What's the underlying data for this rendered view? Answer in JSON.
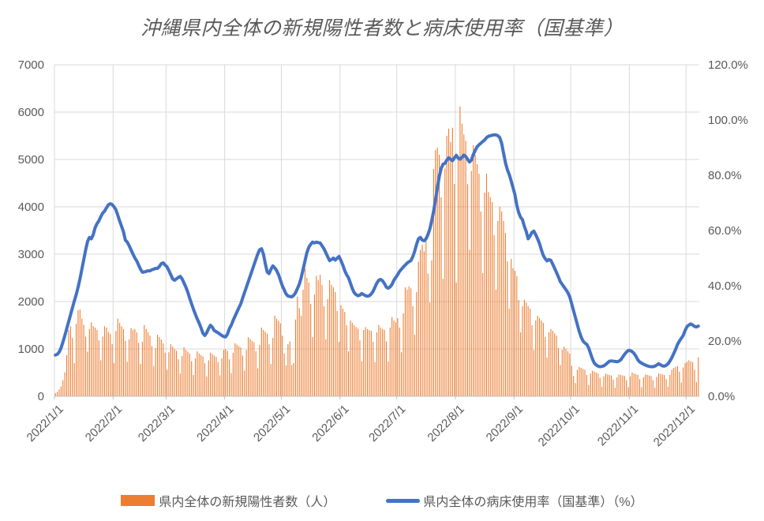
{
  "title": "沖縄県内全体の新規陽性者数と病床使用率（国基準）",
  "colors": {
    "bar": "#ED7D31",
    "line": "#4472C4",
    "text": "#595959",
    "grid": "#D9D9D9",
    "axis": "#BFBFBF"
  },
  "legend": {
    "cases": "県内全体の新規陽性者数（人）",
    "usage": "県内全体の病床使用率（国基準）（%）"
  },
  "chart_data": {
    "type": "combo-bar-line",
    "x_start": "2022/1/1",
    "x_end": "2022/12/7",
    "x_tick_labels": [
      "2022/1/1",
      "2022/2/1",
      "2022/3/1",
      "2022/4/1",
      "2022/5/1",
      "2022/6/1",
      "2022/7/1",
      "2022/8/1",
      "2022/9/1",
      "2022/10/1",
      "2022/11/1",
      "2022/12/1"
    ],
    "y_left": {
      "min": 0,
      "max": 7000,
      "step": 1000,
      "ticks": [
        "0",
        "1000",
        "2000",
        "3000",
        "4000",
        "5000",
        "6000",
        "7000"
      ]
    },
    "y_right": {
      "min": 0,
      "max": 120,
      "step": 20,
      "ticks": [
        "0.0%",
        "20.0%",
        "40.0%",
        "60.0%",
        "80.0%",
        "100.0%",
        "120.0%"
      ]
    },
    "grid": "both",
    "legend_position": "bottom",
    "series": [
      {
        "name": "県内全体の新規陽性者数（人）",
        "type": "bar",
        "axis": "left",
        "color": "#ED7D31",
        "daily_values": [
          65,
          90,
          145,
          210,
          340,
          505,
          870,
          1400,
          1480,
          1230,
          700,
          1530,
          1820,
          1830,
          1640,
          1510,
          1260,
          945,
          1420,
          1560,
          1480,
          1450,
          1400,
          1180,
          760,
          1260,
          1480,
          1450,
          1360,
          1320,
          1100,
          700,
          1380,
          1640,
          1550,
          1480,
          1420,
          1170,
          730,
          1200,
          1440,
          1400,
          1420,
          1350,
          1130,
          680,
          1150,
          1505,
          1422,
          1350,
          1280,
          1060,
          640,
          1020,
          1300,
          1250,
          1200,
          1120,
          920,
          560,
          930,
          1100,
          1050,
          1000,
          960,
          780,
          480,
          850,
          1035,
          980,
          940,
          900,
          740,
          450,
          800,
          950,
          900,
          870,
          840,
          700,
          420,
          760,
          920,
          890,
          860,
          830,
          720,
          440,
          800,
          980,
          1000,
          960,
          780,
          490,
          920,
          1120,
          1090,
          1060,
          1030,
          860,
          540,
          980,
          1250,
          1210,
          1170,
          1140,
          950,
          590,
          1080,
          1450,
          1400,
          1360,
          1320,
          1100,
          680,
          1230,
          1700,
          1640,
          1590,
          1540,
          1280,
          900,
          650,
          1100,
          1160,
          660,
          700,
          1620,
          2100,
          1860,
          1700,
          2250,
          2700,
          2500,
          2400,
          1950,
          1250,
          2150,
          2540,
          2450,
          2565,
          2350,
          1900,
          1200,
          2050,
          2450,
          2350,
          2300,
          2200,
          1800,
          1150,
          1920,
          1850,
          1780,
          1500,
          950,
          1600,
          1550,
          1500,
          1460,
          1430,
          1180,
          740,
          1400,
          1460,
          1420,
          1400,
          1380,
          1150,
          720,
          1350,
          1505,
          1450,
          1420,
          1400,
          1160,
          730,
          1450,
          1672,
          1600,
          1560,
          1650,
          1450,
          930,
          1750,
          2300,
          2250,
          2320,
          2280,
          1900,
          1300,
          2200,
          2840,
          3090,
          3200,
          3060,
          3340,
          2590,
          1980,
          2870,
          4800,
          5200,
          5250,
          5100,
          4200,
          2480,
          4810,
          5500,
          5650,
          5370,
          5670,
          4480,
          2400,
          5005,
          6117,
          5755,
          5530,
          5395,
          4478,
          3090,
          4756,
          5300,
          5100,
          4900,
          4700,
          3900,
          2600,
          4300,
          4700,
          4311,
          4200,
          4100,
          3400,
          2250,
          3700,
          4000,
          3900,
          3700,
          3450,
          2850,
          1850,
          2898,
          2704,
          2650,
          2538,
          2030,
          1350,
          1900,
          2040,
          1980,
          1900,
          1850,
          1500,
          980,
          1600,
          1700,
          1650,
          1600,
          1550,
          1250,
          820,
          1350,
          1420,
          1380,
          1330,
          1280,
          1020,
          660,
          980,
          1050,
          1000,
          950,
          900,
          645,
          430,
          280,
          560,
          620,
          600,
          580,
          560,
          450,
          240,
          480,
          540,
          520,
          500,
          480,
          390,
          200,
          420,
          480,
          460,
          450,
          440,
          350,
          180,
          400,
          460,
          450,
          440,
          430,
          340,
          190,
          420,
          500,
          480,
          470,
          450,
          360,
          190,
          400,
          460,
          450,
          440,
          430,
          340,
          180,
          410,
          480,
          470,
          460,
          450,
          360,
          200,
          450,
          560,
          600,
          620,
          640,
          520,
          290,
          610,
          700,
          730,
          760,
          740,
          720,
          560,
          300,
          820
        ]
      },
      {
        "name": "県内全体の病床使用率（国基準）（%）",
        "type": "line",
        "axis": "right",
        "unit": "%",
        "color": "#4472C4",
        "daily_values": [
          14.9,
          15.2,
          16,
          17.5,
          19.7,
          22,
          24.5,
          27,
          29.5,
          32,
          34.5,
          36.8,
          39.5,
          42.5,
          46,
          49.5,
          53,
          56,
          57.5,
          57,
          58.5,
          61,
          62.5,
          63.5,
          65,
          66.3,
          67,
          68.2,
          69.3,
          69.7,
          69.4,
          68.6,
          67.5,
          65.5,
          63.4,
          61.5,
          59.5,
          56.5,
          55.8,
          54.5,
          53,
          51.5,
          50.1,
          49,
          47.5,
          46,
          44.9,
          45,
          45.2,
          45.4,
          45.4,
          45.8,
          46,
          46.3,
          46.3,
          47,
          48,
          48.3,
          47.5,
          46.9,
          45.5,
          44,
          42.5,
          42,
          42.5,
          43,
          43.4,
          42.5,
          41,
          39.5,
          37.7,
          35.5,
          33.5,
          31.5,
          29.7,
          28,
          26.5,
          24.8,
          22.8,
          22,
          23,
          24.5,
          25.7,
          25,
          23.8,
          23.4,
          23,
          22.5,
          22,
          21.6,
          21.5,
          22.5,
          24.5,
          25.7,
          27.5,
          29,
          30.5,
          32,
          33.4,
          35.5,
          37.5,
          39.5,
          41.5,
          43.5,
          45.5,
          47.5,
          49.5,
          51.5,
          53,
          53.4,
          51.5,
          48,
          45,
          44.4,
          46,
          47.2,
          46.5,
          45.5,
          44,
          42,
          40,
          38.5,
          37,
          36.3,
          36.1,
          36,
          36.5,
          37.5,
          39,
          40.6,
          43,
          46,
          49,
          52,
          53.9,
          55,
          55.8,
          55.5,
          55.8,
          55.6,
          55.5,
          54.5,
          53.4,
          52,
          50.5,
          49.1,
          49.5,
          50,
          49.3,
          50,
          50.6,
          49.1,
          47.5,
          45.5,
          44,
          42.9,
          41,
          39,
          37.5,
          36.8,
          36.4,
          36.6,
          37.2,
          36.8,
          36.4,
          36.2,
          36.4,
          37,
          38,
          39.5,
          41,
          42,
          42.3,
          41.8,
          40.8,
          39.5,
          39.1,
          39.6,
          40.5,
          42,
          43,
          44,
          45.2,
          46,
          46.8,
          47.5,
          48.2,
          48.7,
          49.1,
          50.5,
          52.5,
          55,
          57,
          57.5,
          56.5,
          56.3,
          57,
          58.5,
          60.5,
          63.5,
          67,
          71,
          75.5,
          79.5,
          82.5,
          84,
          84.3,
          85.5,
          86.3,
          85.8,
          85.3,
          86.3,
          87.2,
          86.2,
          85.8,
          86.5,
          87.3,
          86.8,
          85.8,
          84.8,
          85.5,
          87.5,
          89,
          90.3,
          91,
          91.6,
          92.2,
          92.8,
          93.6,
          94.1,
          94.3,
          94.5,
          94.6,
          94.6,
          94.3,
          93.6,
          91.5,
          88,
          84.5,
          82,
          80.3,
          78,
          75.5,
          73,
          69.1,
          66.5,
          64.8,
          63.9,
          61.5,
          59.6,
          57,
          58,
          59.3,
          59.8,
          58.5,
          57,
          55.3,
          53,
          51,
          49.8,
          49,
          49.5,
          49.2,
          47.8,
          46.3,
          44.8,
          43.2,
          41.5,
          40.5,
          39.5,
          38.6,
          37.5,
          36,
          33.5,
          31,
          28.5,
          26,
          23.5,
          21.5,
          20,
          19.3,
          18.8,
          17.5,
          15.5,
          13.5,
          12,
          11.3,
          10.9,
          10.7,
          10.8,
          11,
          11.5,
          12.1,
          12.7,
          12.8,
          12.7,
          12.6,
          12.5,
          12.7,
          13.2,
          14.2,
          15.2,
          16,
          16.6,
          16.5,
          16.2,
          15.5,
          14.5,
          13.2,
          12.4,
          12,
          11.6,
          11.3,
          11,
          10.8,
          10.7,
          10.7,
          10.9,
          11.3,
          11.8,
          11.4,
          11,
          10.9,
          11.2,
          11.8,
          12.8,
          14,
          15.5,
          17,
          18.8,
          20,
          21,
          22,
          23.8,
          25.2,
          25.8,
          26.2,
          25.8,
          25.3,
          25.1,
          25.4
        ]
      }
    ]
  }
}
